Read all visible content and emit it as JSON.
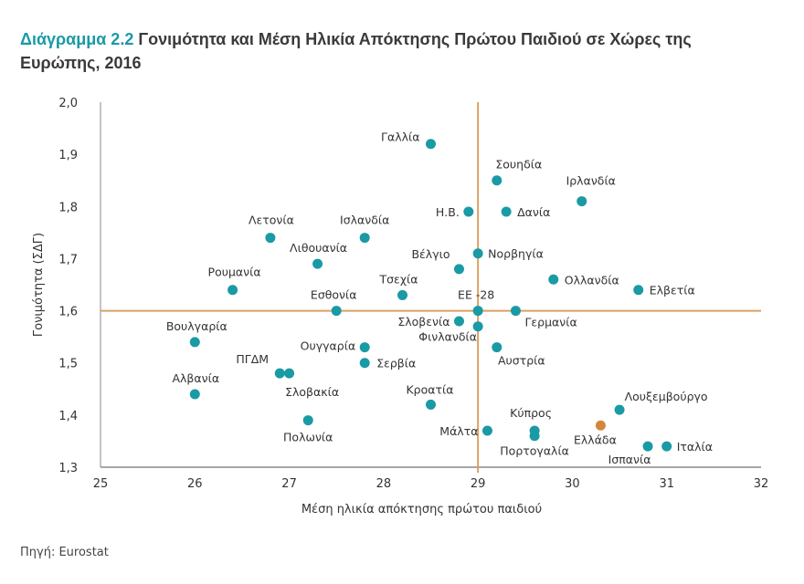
{
  "title": {
    "number": "Διάγραμμα 2.2",
    "text": "Γονιμότητα και Μέση Ηλικία Απόκτησης Πρώτου Παιδιού σε Χώρες της Ευρώπης, 2016"
  },
  "source": "Πηγή: Eurostat",
  "colors": {
    "point": "#1a9aa5",
    "highlight": "#d2873d",
    "reference": "#d9a165",
    "axis": "#888888",
    "title_accent": "#1a9aa5"
  },
  "chart_data": {
    "type": "scatter",
    "xlabel": "Μέση ηλικία απόκτησης πρώτου παιδιού",
    "ylabel": "Γονιμότητα (ΣΔΓ)",
    "xlim": [
      25,
      32
    ],
    "ylim": [
      1.3,
      2.0
    ],
    "xticks": [
      "25",
      "26",
      "27",
      "28",
      "29",
      "30",
      "31",
      "32"
    ],
    "yticks": [
      "1,3",
      "1,4",
      "1,5",
      "1,6",
      "1,7",
      "1,8",
      "1,9",
      "2,0"
    ],
    "grid": false,
    "reference_lines": {
      "x": 29.0,
      "y": 1.6
    },
    "points": [
      {
        "label": "Γαλλία",
        "x": 28.5,
        "y": 1.92
      },
      {
        "label": "Σουηδία",
        "x": 29.2,
        "y": 1.85
      },
      {
        "label": "Ιρλανδία",
        "x": 30.1,
        "y": 1.81
      },
      {
        "label": "Η.Β.",
        "x": 28.9,
        "y": 1.79
      },
      {
        "label": "Δανία",
        "x": 29.3,
        "y": 1.79
      },
      {
        "label": "Λετονία",
        "x": 26.8,
        "y": 1.74
      },
      {
        "label": "Ισλανδία",
        "x": 27.8,
        "y": 1.74
      },
      {
        "label": "Λιθουανία",
        "x": 27.3,
        "y": 1.69
      },
      {
        "label": "Βέλγιο",
        "x": 28.8,
        "y": 1.68
      },
      {
        "label": "Νορβηγία",
        "x": 29.0,
        "y": 1.71
      },
      {
        "label": "Ρουμανία",
        "x": 26.4,
        "y": 1.64
      },
      {
        "label": "Τσεχία",
        "x": 28.2,
        "y": 1.63
      },
      {
        "label": "Ολλανδία",
        "x": 29.8,
        "y": 1.66
      },
      {
        "label": "Ελβετία",
        "x": 30.7,
        "y": 1.64
      },
      {
        "label": "Εσθονία",
        "x": 27.5,
        "y": 1.6
      },
      {
        "label": "ΕΕ -28",
        "x": 29.0,
        "y": 1.6
      },
      {
        "label": "Γερμανία",
        "x": 29.4,
        "y": 1.6
      },
      {
        "label": "Σλοβενία",
        "x": 28.8,
        "y": 1.58
      },
      {
        "label": "Φινλανδία",
        "x": 29.0,
        "y": 1.57
      },
      {
        "label": "Βουλγαρία",
        "x": 26.0,
        "y": 1.54
      },
      {
        "label": "Ουγγαρία",
        "x": 27.8,
        "y": 1.53
      },
      {
        "label": "Αυστρία",
        "x": 29.2,
        "y": 1.53
      },
      {
        "label": "Σερβία",
        "x": 27.8,
        "y": 1.5
      },
      {
        "label": "ΠΓΔΜ",
        "x": 26.9,
        "y": 1.48
      },
      {
        "label": "Σλοβακία",
        "x": 27.0,
        "y": 1.48
      },
      {
        "label": "Αλβανία",
        "x": 26.0,
        "y": 1.44
      },
      {
        "label": "Κροατία",
        "x": 28.5,
        "y": 1.42
      },
      {
        "label": "Πολωνία",
        "x": 27.2,
        "y": 1.39
      },
      {
        "label": "Μάλτα",
        "x": 29.1,
        "y": 1.37
      },
      {
        "label": "Κύπρος",
        "x": 29.6,
        "y": 1.37
      },
      {
        "label": "Πορτογαλία",
        "x": 29.6,
        "y": 1.36
      },
      {
        "label": "Ελλάδα",
        "x": 30.3,
        "y": 1.38,
        "highlight": true
      },
      {
        "label": "Λουξεμβούργο",
        "x": 30.5,
        "y": 1.41
      },
      {
        "label": "Ισπανία",
        "x": 30.8,
        "y": 1.34
      },
      {
        "label": "Ιταλία",
        "x": 31.0,
        "y": 1.34
      }
    ]
  }
}
